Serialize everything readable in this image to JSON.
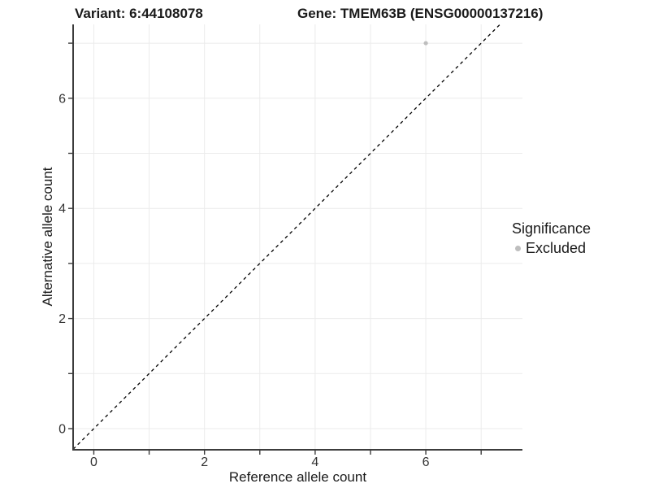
{
  "titles": {
    "variant": "Variant: 6:44108078",
    "gene": "Gene: TMEM63B (ENSG00000137216)"
  },
  "axes": {
    "x_label": "Reference allele count",
    "y_label": "Alternative allele count"
  },
  "legend": {
    "title": "Significance",
    "items": [
      {
        "label": "Excluded",
        "color": "#bebebe"
      }
    ]
  },
  "colors": {
    "background": "#ffffff",
    "grid": "#ebebeb",
    "axis": "#3c3c3c",
    "text": "#333333",
    "dashed_line": "#000000",
    "point": "#bebebe"
  },
  "chart_data": {
    "type": "scatter",
    "title": "Variant: 6:44108078 — Gene: TMEM63B (ENSG00000137216)",
    "xlabel": "Reference allele count",
    "ylabel": "Alternative allele count",
    "xlim": [
      -0.374,
      7.746
    ],
    "ylim": [
      -0.384,
      7.341
    ],
    "grid": true,
    "x_gridlines": [
      0,
      1,
      2,
      3,
      4,
      5,
      6,
      7
    ],
    "y_gridlines": [
      0,
      1,
      2,
      3,
      4,
      5,
      6,
      7
    ],
    "x_ticks": [
      0,
      1,
      2,
      3,
      4,
      5,
      6,
      7
    ],
    "y_ticks": [
      0,
      1,
      2,
      3,
      4,
      5,
      6,
      7
    ],
    "x_tick_labels": [
      0,
      2,
      4,
      6
    ],
    "y_tick_labels": [
      0,
      2,
      4,
      6
    ],
    "reference_line": {
      "slope": 1,
      "intercept": 0,
      "style": "dashed",
      "color": "#000000"
    },
    "legend_position": "right",
    "series": [
      {
        "name": "Excluded",
        "color": "#bebebe",
        "points": [
          {
            "x": 6,
            "y": 7
          }
        ]
      }
    ]
  }
}
